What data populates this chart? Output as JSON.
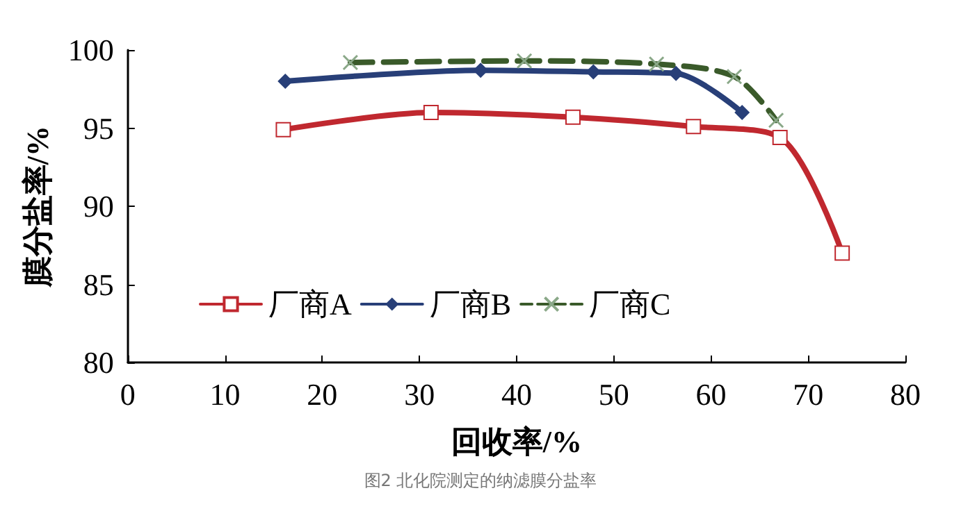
{
  "chart_data": {
    "type": "line",
    "xlabel": "回收率/%",
    "ylabel": "膜分盐率/%",
    "annotations": [
      "图2 北化院测定的纳滤膜分盐率"
    ],
    "xlim": [
      0,
      80
    ],
    "xticks": [
      0,
      10,
      20,
      30,
      40,
      50,
      60,
      70,
      80
    ],
    "ylim": [
      80,
      100
    ],
    "yticks": [
      80,
      85,
      90,
      95,
      100
    ],
    "grid": false,
    "legend": "left",
    "series": [
      {
        "name": "厂商A",
        "color": "#c0282f",
        "marker": "square",
        "line_style": "solid",
        "x": [
          16,
          31.2,
          45.8,
          58.2,
          67.1,
          73.5
        ],
        "values": [
          94.9,
          96.0,
          95.7,
          95.1,
          94.4,
          87.0
        ]
      },
      {
        "name": "厂商B",
        "color": "#283f78",
        "marker": "diamond",
        "line_style": "solid",
        "x": [
          16.2,
          36.3,
          47.9,
          56.4,
          63.2
        ],
        "values": [
          98.0,
          98.7,
          98.6,
          98.5,
          96.0
        ]
      },
      {
        "name": "厂商C",
        "color": "#3a5a2a",
        "marker": "cross",
        "line_style": "dashed",
        "x": [
          22.9,
          40.8,
          54.4,
          62.4,
          66.7
        ],
        "values": [
          99.2,
          99.3,
          99.1,
          98.3,
          95.5
        ]
      }
    ]
  }
}
